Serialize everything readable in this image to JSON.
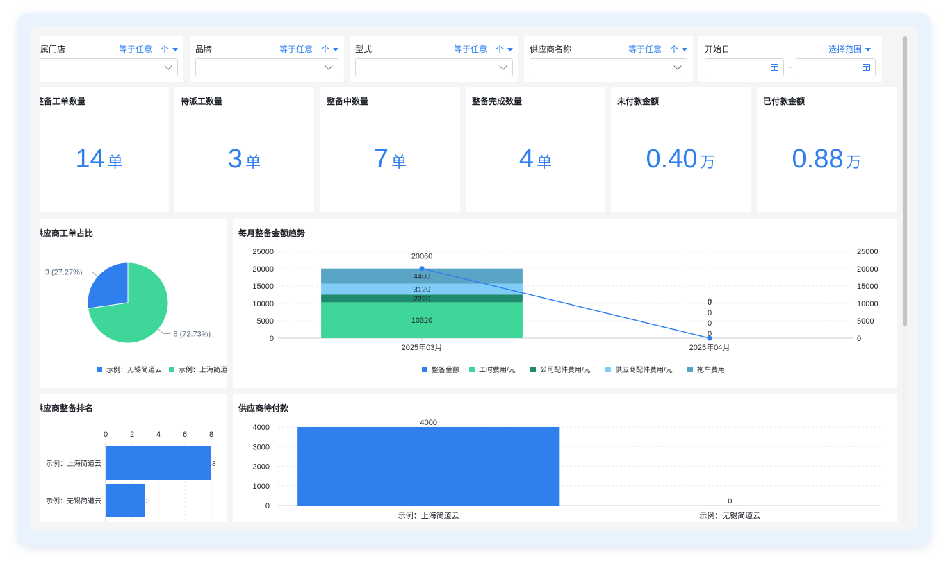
{
  "filters": [
    {
      "title": "所属门店",
      "mode": "等于任意一个"
    },
    {
      "title": "品牌",
      "mode": "等于任意一个"
    },
    {
      "title": "型式",
      "mode": "等于任意一个"
    },
    {
      "title": "供应商名称",
      "mode": "等于任意一个"
    },
    {
      "title": "开始日",
      "mode": "选择范围",
      "range_separator": "~"
    }
  ],
  "kpis": [
    {
      "title": "整备工单数量",
      "value": "14",
      "unit": "单"
    },
    {
      "title": "待派工数量",
      "value": "3",
      "unit": "单"
    },
    {
      "title": "整备中数量",
      "value": "7",
      "unit": "单"
    },
    {
      "title": "整备完成数量",
      "value": "4",
      "unit": "单"
    },
    {
      "title": "未付款金额",
      "value": "0.40",
      "unit": "万"
    },
    {
      "title": "已付款金额",
      "value": "0.88",
      "unit": "万"
    }
  ],
  "colors": {
    "blue": "#2f7fef",
    "green": "#3fd699",
    "dark_green": "#1f8a6e",
    "light_blue": "#7fcdf7",
    "steel_blue": "#5aa4c6"
  },
  "chart_data": [
    {
      "type": "pie",
      "title": "供应商工单占比",
      "slices": [
        {
          "name": "示例：无锡简道云",
          "value": 3,
          "label": "3 (27.27%)",
          "color": "#2f7fef"
        },
        {
          "name": "示例：上海简道云",
          "value": 8,
          "label": "8 (72.73%)",
          "color": "#3fd699"
        }
      ],
      "legend": "bottom"
    },
    {
      "type": "bar",
      "title": "每月整备金额趋势",
      "categories": [
        "2025年03月",
        "2025年04月"
      ],
      "ylim": [
        0,
        25000
      ],
      "yticks": [
        "0",
        "5000",
        "10000",
        "15000",
        "20000",
        "25000"
      ],
      "series": [
        {
          "name": "整备金额",
          "kind": "line",
          "values": [
            20060,
            0
          ],
          "labels": [
            "20060",
            "0"
          ],
          "color": "#2f7fef"
        },
        {
          "name": "工时费用/元",
          "kind": "stack",
          "values": [
            10320,
            0
          ],
          "labels": [
            "10320",
            "0"
          ],
          "color": "#3fd699"
        },
        {
          "name": "公司配件费用/元",
          "kind": "stack",
          "values": [
            2220,
            0
          ],
          "labels": [
            "2220",
            "0"
          ],
          "color": "#1f8a6e"
        },
        {
          "name": "供应商配件费用/元",
          "kind": "stack",
          "values": [
            3120,
            0
          ],
          "labels": [
            "3120",
            "0"
          ],
          "color": "#7fcdf7"
        },
        {
          "name": "拖车费用",
          "kind": "stack",
          "values": [
            4400,
            0
          ],
          "labels": [
            "4400",
            "0"
          ],
          "color": "#5aa4c6"
        }
      ],
      "legend": "bottom",
      "grid": true
    },
    {
      "type": "bar",
      "orientation": "horizontal",
      "title": "供应商整备排名",
      "categories": [
        "示例：上海简道云",
        "示例：无锡简道云"
      ],
      "values": [
        8,
        3
      ],
      "xlim": [
        0,
        8
      ],
      "xticks": [
        "0",
        "2",
        "4",
        "6",
        "8"
      ],
      "color": "#2f7fef"
    },
    {
      "type": "bar",
      "title": "供应商待付款",
      "categories": [
        "示例：上海简道云",
        "示例：无锡简道云"
      ],
      "values": [
        4000,
        0
      ],
      "ylim": [
        0,
        4000
      ],
      "yticks": [
        "0",
        "1000",
        "2000",
        "3000",
        "4000"
      ],
      "color": "#2f7fef",
      "grid": true
    }
  ]
}
